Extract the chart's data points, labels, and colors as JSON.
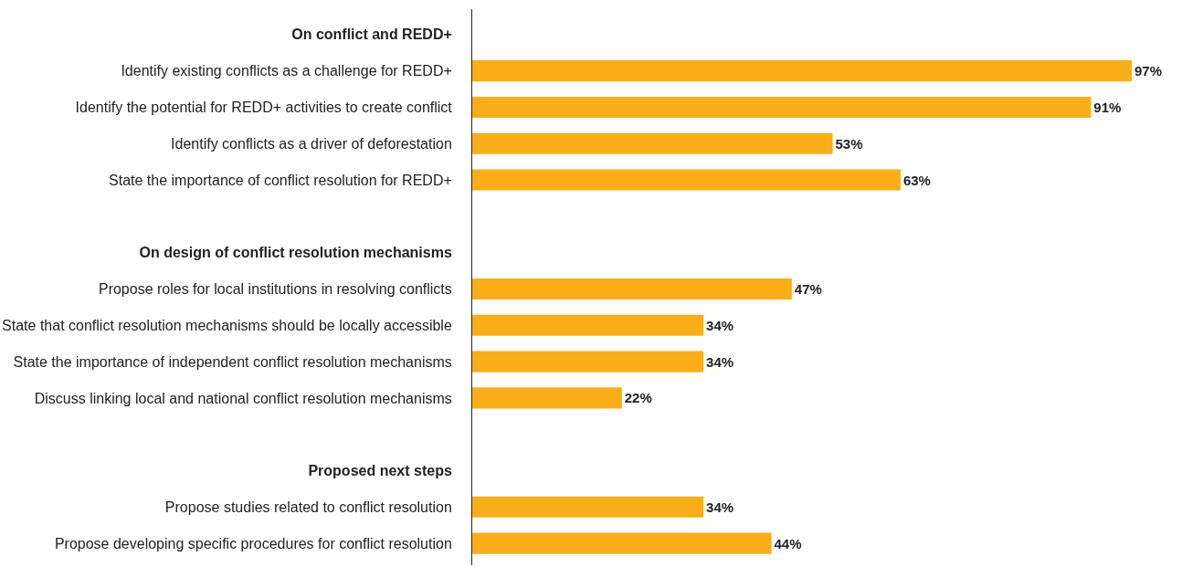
{
  "chart_data": {
    "type": "bar",
    "orientation": "horizontal",
    "categories": [
      "On conflict and REDD+",
      "Identify existing conflicts as a challenge for REDD+",
      "Identify the potential for REDD+ activities to create conflict",
      "Identify conflicts as a driver of deforestation",
      "State the importance of conflict resolution for REDD+",
      null,
      "On design of conflict resolution mechanisms",
      "Propose roles for local institutions in resolving conflicts",
      "State that conflict resolution mechanisms should be locally accessible",
      "State the importance of independent conflict resolution mechanisms",
      "Discuss linking local and national conflict resolution mechanisms",
      null,
      "Proposed next steps",
      "Propose studies related to conflict resolution",
      "Propose developing specific procedures for conflict resolution"
    ],
    "values": [
      null,
      97,
      91,
      53,
      63,
      null,
      null,
      47,
      34,
      34,
      22,
      null,
      null,
      34,
      44
    ],
    "value_labels": [
      null,
      "97%",
      "91%",
      "53%",
      "63%",
      null,
      null,
      "47%",
      "34%",
      "34%",
      "22%",
      null,
      null,
      "34%",
      "44%"
    ],
    "color": "#f9ae1a",
    "tick_labels": "y"
  }
}
